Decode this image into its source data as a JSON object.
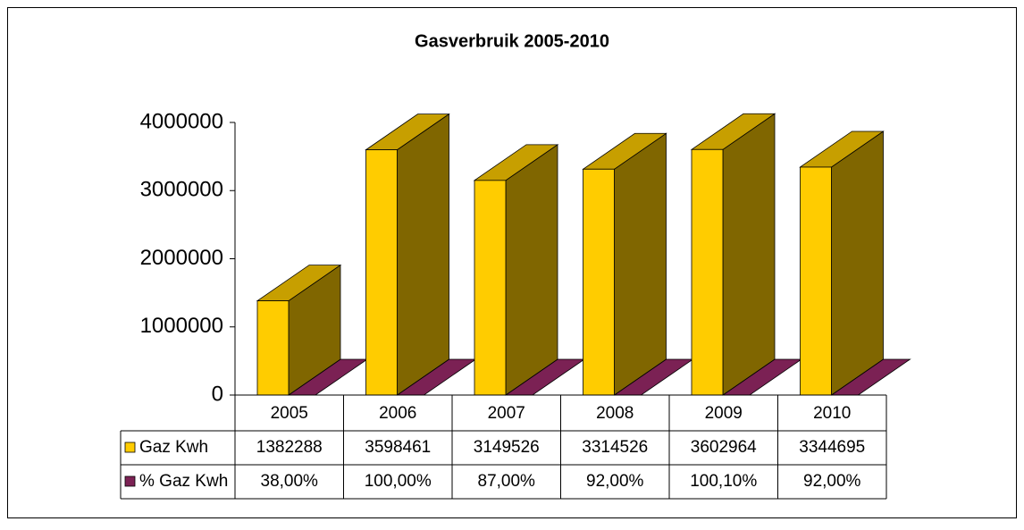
{
  "chart_data": {
    "type": "bar3d",
    "title": "Gasverbruik 2005-2010",
    "categories": [
      "2005",
      "2006",
      "2007",
      "2008",
      "2009",
      "2010"
    ],
    "series": [
      {
        "name": "Gaz Kwh",
        "color": "#ffcc00",
        "values": [
          1382288,
          3598461,
          3149526,
          3314526,
          3602964,
          3344695
        ]
      },
      {
        "name": "% Gaz Kwh",
        "color": "#7b2154",
        "values": [
          38,
          100,
          87,
          92,
          100.1,
          92
        ],
        "value_labels": [
          "38,00%",
          "100,00%",
          "87,00%",
          "92,00%",
          "100,10%",
          "92,00%"
        ]
      }
    ],
    "ylim": [
      0,
      4000000
    ],
    "yticks": [
      0,
      1000000,
      2000000,
      3000000,
      4000000
    ],
    "grid": false
  }
}
